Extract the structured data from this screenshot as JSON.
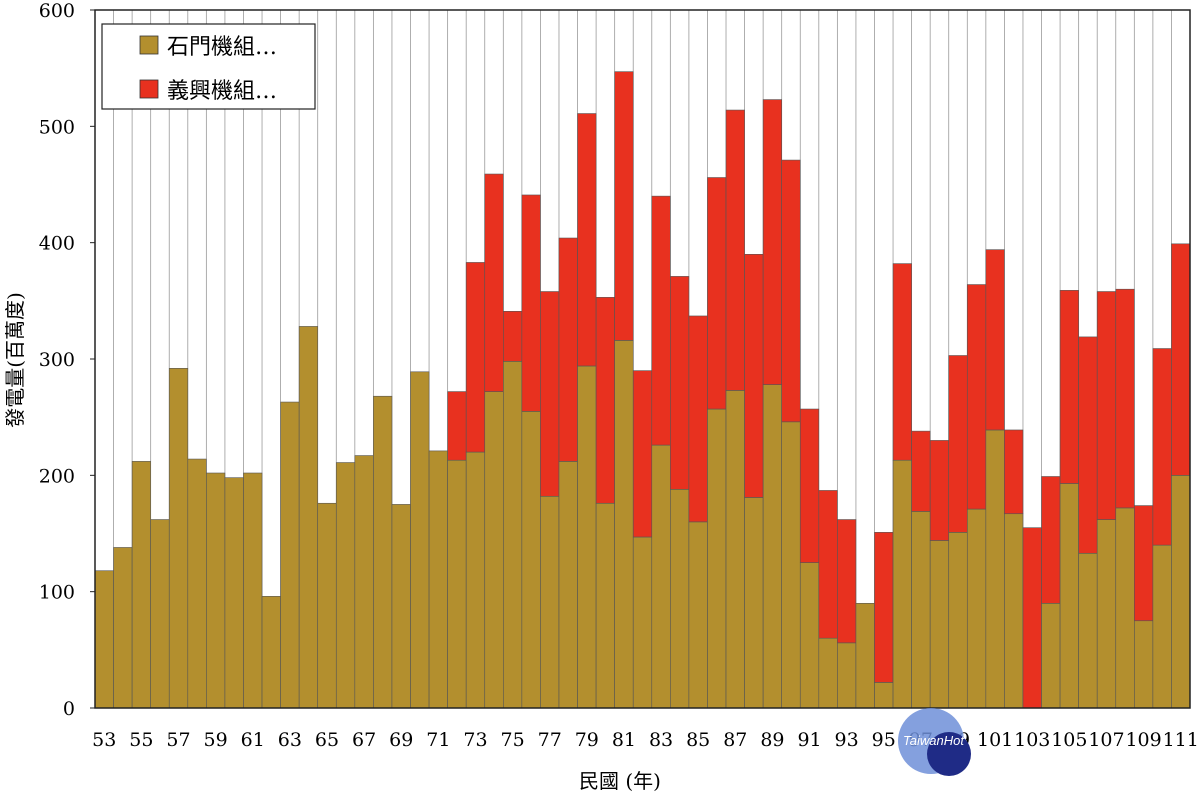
{
  "chart_data": {
    "type": "bar",
    "stacked": true,
    "xlabel": "民國 (年)",
    "ylabel": "發電量(百萬度)",
    "ylim": [
      0,
      600
    ],
    "yticks": [
      0,
      100,
      200,
      300,
      400,
      500,
      600
    ],
    "grid": "vertical lines",
    "legend_position": "top-left",
    "categories": [
      53,
      54,
      55,
      56,
      57,
      58,
      59,
      60,
      61,
      62,
      63,
      64,
      65,
      66,
      67,
      68,
      69,
      70,
      71,
      72,
      73,
      74,
      75,
      76,
      77,
      78,
      79,
      80,
      81,
      82,
      83,
      84,
      85,
      86,
      87,
      88,
      89,
      90,
      91,
      92,
      93,
      94,
      95,
      96,
      97,
      98,
      99,
      100,
      101,
      102,
      103,
      104,
      105,
      106,
      107,
      108,
      109,
      110,
      111
    ],
    "tick_labels": [
      "53",
      "55",
      "57",
      "59",
      "61",
      "63",
      "65",
      "67",
      "69",
      "71",
      "73",
      "75",
      "77",
      "79",
      "81",
      "83",
      "85",
      "87",
      "89",
      "91",
      "93",
      "95",
      "97",
      "99",
      "101",
      "103",
      "105",
      "107",
      "109",
      "111"
    ],
    "series": [
      {
        "name": "石門機組…",
        "color": "#b38f2e",
        "values": [
          118,
          138,
          212,
          162,
          292,
          214,
          202,
          198,
          202,
          96,
          263,
          328,
          176,
          211,
          217,
          268,
          175,
          289,
          221,
          213,
          220,
          272,
          298,
          255,
          182,
          212,
          294,
          176,
          316,
          147,
          226,
          188,
          160,
          257,
          273,
          181,
          278,
          246,
          125,
          60,
          56,
          90,
          22,
          213,
          169,
          144,
          151,
          171,
          239,
          167,
          0,
          90,
          193,
          133,
          162,
          172,
          75,
          140,
          200
        ]
      },
      {
        "name": "義興機組…",
        "color": "#e8311f",
        "values": [
          0,
          0,
          0,
          0,
          0,
          0,
          0,
          0,
          0,
          0,
          0,
          0,
          0,
          0,
          0,
          0,
          0,
          0,
          0,
          59,
          163,
          187,
          43,
          186,
          176,
          192,
          217,
          177,
          231,
          143,
          214,
          183,
          177,
          199,
          241,
          209,
          245,
          225,
          132,
          127,
          106,
          0,
          129,
          169,
          69,
          86,
          152,
          193,
          155,
          72,
          155,
          109,
          166,
          186,
          196,
          188,
          99,
          169,
          199
        ]
      }
    ]
  },
  "watermark": {
    "text": "TaiwanHot"
  }
}
